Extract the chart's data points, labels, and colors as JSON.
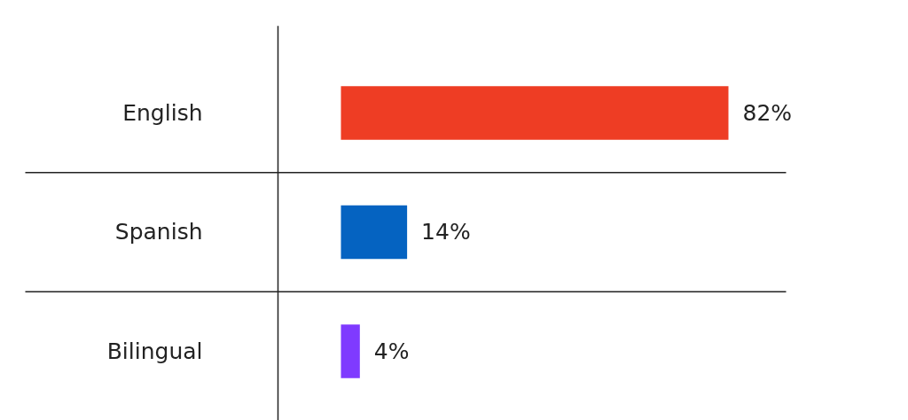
{
  "chart_data": {
    "type": "bar",
    "orientation": "horizontal",
    "categories": [
      "English",
      "Spanish",
      "Bilingual"
    ],
    "values": [
      82,
      14,
      4
    ],
    "colors": [
      "#ee3d24",
      "#0563c1",
      "#7f3aff"
    ],
    "value_labels": [
      "82%",
      "14%",
      "4%"
    ],
    "grid": false
  }
}
